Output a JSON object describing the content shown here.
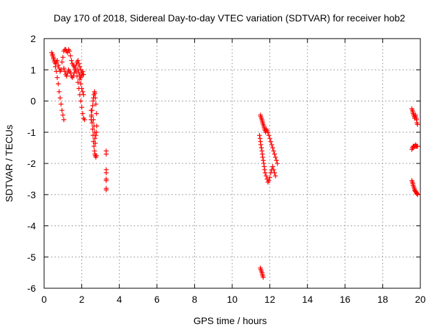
{
  "chart_data": {
    "type": "scatter",
    "title": "Day 170 of 2018, Sidereal Day-to-day VTEC variation (SDTVAR) for receiver hob2",
    "xlabel": "GPS time / hours",
    "ylabel": "SDTVAR / TECUs",
    "xlim": [
      0,
      20
    ],
    "ylim": [
      -6,
      2
    ],
    "xticks": [
      0,
      2,
      4,
      6,
      8,
      10,
      12,
      14,
      16,
      18,
      20
    ],
    "yticks": [
      -6,
      -5,
      -4,
      -3,
      -2,
      -1,
      0,
      1,
      2
    ],
    "grid": true,
    "marker": "+",
    "series": [
      {
        "name": "SDTVAR",
        "color": "#ff0000",
        "x": [
          0.4,
          0.45,
          0.5,
          0.55,
          0.6,
          0.65,
          0.7,
          0.75,
          0.8,
          0.85,
          0.9,
          0.95,
          1.0,
          1.05,
          0.45,
          0.5,
          0.55,
          0.6,
          0.65,
          0.7,
          0.75,
          0.8,
          0.85,
          0.9,
          0.95,
          1.0,
          1.05,
          1.1,
          1.15,
          1.2,
          1.25,
          1.3,
          1.35,
          1.4,
          1.45,
          1.5,
          1.55,
          1.6,
          1.65,
          1.7,
          1.75,
          1.8,
          1.85,
          1.9,
          1.95,
          2.0,
          2.05,
          1.05,
          1.1,
          1.15,
          1.2,
          1.25,
          1.3,
          1.35,
          1.4,
          1.45,
          1.5,
          1.55,
          1.6,
          1.65,
          1.7,
          1.75,
          1.8,
          1.85,
          1.9,
          1.95,
          2.0,
          2.05,
          2.1,
          2.15,
          1.9,
          1.95,
          2.0,
          2.05,
          2.1,
          1.8,
          1.85,
          1.9,
          1.95,
          2.0,
          2.05,
          2.1,
          2.5,
          2.52,
          2.55,
          2.58,
          2.6,
          2.62,
          2.65,
          2.68,
          2.7,
          2.72,
          2.75,
          2.78,
          2.5,
          2.52,
          2.55,
          2.58,
          2.6,
          2.62,
          2.65,
          2.68,
          2.7,
          2.72,
          2.75,
          2.78,
          2.8,
          2.62,
          2.65,
          2.68,
          2.7,
          2.72,
          2.75,
          2.78,
          3.3,
          3.3,
          3.3,
          3.3,
          3.3,
          3.3,
          3.3,
          3.3,
          11.5,
          11.52,
          11.55,
          11.58,
          11.6,
          11.62,
          11.65,
          11.68,
          11.7,
          11.72,
          11.75,
          11.78,
          11.8,
          11.85,
          11.9,
          11.95,
          12.0,
          12.05,
          12.1,
          12.15,
          12.2,
          12.25,
          12.3,
          12.35,
          12.4,
          11.45,
          11.48,
          11.5,
          11.52,
          11.55,
          11.58,
          11.6,
          11.62,
          11.65,
          11.68,
          11.7,
          11.72,
          11.75,
          11.8,
          11.85,
          11.9,
          11.95,
          12.0,
          12.05,
          12.1,
          12.15,
          12.2,
          12.25,
          12.3,
          11.5,
          11.52,
          11.55,
          11.58,
          11.6,
          11.62,
          11.65,
          19.55,
          19.58,
          19.6,
          19.62,
          19.65,
          19.68,
          19.7,
          19.72,
          19.75,
          19.78,
          19.8,
          19.82,
          19.85,
          19.55,
          19.58,
          19.6,
          19.62,
          19.65,
          19.68,
          19.7,
          19.72,
          19.75,
          19.78,
          19.8,
          19.82,
          19.85,
          19.55,
          19.58,
          19.6,
          19.62,
          19.65,
          19.68,
          19.7,
          19.72,
          19.75,
          19.78,
          19.8,
          19.82,
          19.85
        ],
        "y": [
          1.55,
          1.45,
          1.35,
          1.25,
          1.1,
          0.95,
          0.75,
          0.55,
          0.3,
          0.1,
          -0.1,
          -0.3,
          -0.45,
          -0.6,
          1.5,
          1.4,
          1.3,
          1.2,
          1.25,
          1.3,
          1.15,
          1.05,
          0.95,
          1.0,
          1.25,
          1.4,
          1.6,
          1.65,
          1.65,
          1.6,
          1.55,
          1.65,
          1.6,
          1.45,
          1.3,
          1.2,
          1.15,
          1.1,
          1.05,
          1.15,
          1.25,
          1.3,
          1.2,
          1.1,
          1.0,
          0.9,
          0.85,
          1.05,
          0.95,
          0.85,
          0.8,
          0.9,
          1.0,
          0.95,
          0.9,
          0.8,
          0.75,
          0.8,
          0.9,
          1.0,
          0.95,
          0.8,
          0.6,
          0.4,
          0.2,
          0.0,
          -0.2,
          -0.4,
          -0.55,
          -0.6,
          0.7,
          0.55,
          0.4,
          0.3,
          0.2,
          1.0,
          0.9,
          0.8,
          0.75,
          0.85,
          0.95,
          0.85,
          -0.3,
          -0.5,
          -0.7,
          -0.9,
          -1.1,
          -1.3,
          -1.45,
          -1.6,
          -1.7,
          -1.75,
          -1.8,
          -1.75,
          -0.6,
          -0.45,
          -0.3,
          -0.15,
          0.0,
          0.1,
          0.2,
          0.3,
          0.25,
          0.1,
          -0.1,
          -0.4,
          -0.8,
          -0.6,
          -0.8,
          -1.0,
          -1.2,
          -1.35,
          -1.1,
          -1.0,
          -1.6,
          -1.7,
          -2.2,
          -2.3,
          -2.5,
          -2.55,
          -2.8,
          -2.85,
          -0.45,
          -0.5,
          -0.55,
          -0.6,
          -0.65,
          -0.7,
          -0.75,
          -0.8,
          -0.85,
          -0.9,
          -0.95,
          -1.0,
          -0.9,
          -0.95,
          -1.0,
          -1.1,
          -1.2,
          -1.3,
          -1.4,
          -1.5,
          -1.6,
          -1.7,
          -1.8,
          -1.9,
          -2.0,
          -1.1,
          -1.2,
          -1.3,
          -1.4,
          -1.5,
          -1.6,
          -1.7,
          -1.8,
          -1.9,
          -2.0,
          -2.1,
          -2.2,
          -2.3,
          -2.4,
          -2.5,
          -2.6,
          -2.55,
          -2.45,
          -2.3,
          -2.2,
          -2.1,
          -2.2,
          -2.3,
          -2.4,
          -5.35,
          -5.4,
          -5.45,
          -5.5,
          -5.55,
          -5.6,
          -5.65,
          -0.25,
          -0.3,
          -0.35,
          -0.4,
          -0.45,
          -0.5,
          -0.55,
          -0.5,
          -0.45,
          -0.55,
          -0.6,
          -0.7,
          -0.75,
          -1.55,
          -1.5,
          -1.5,
          -1.45,
          -1.45,
          -1.45,
          -1.45,
          -1.45,
          -1.4,
          -1.45,
          -1.45,
          -1.45,
          -1.45,
          -2.55,
          -2.6,
          -2.65,
          -2.7,
          -2.75,
          -2.8,
          -2.85,
          -2.88,
          -2.9,
          -2.92,
          -2.95,
          -2.97,
          -3.0
        ]
      }
    ]
  }
}
